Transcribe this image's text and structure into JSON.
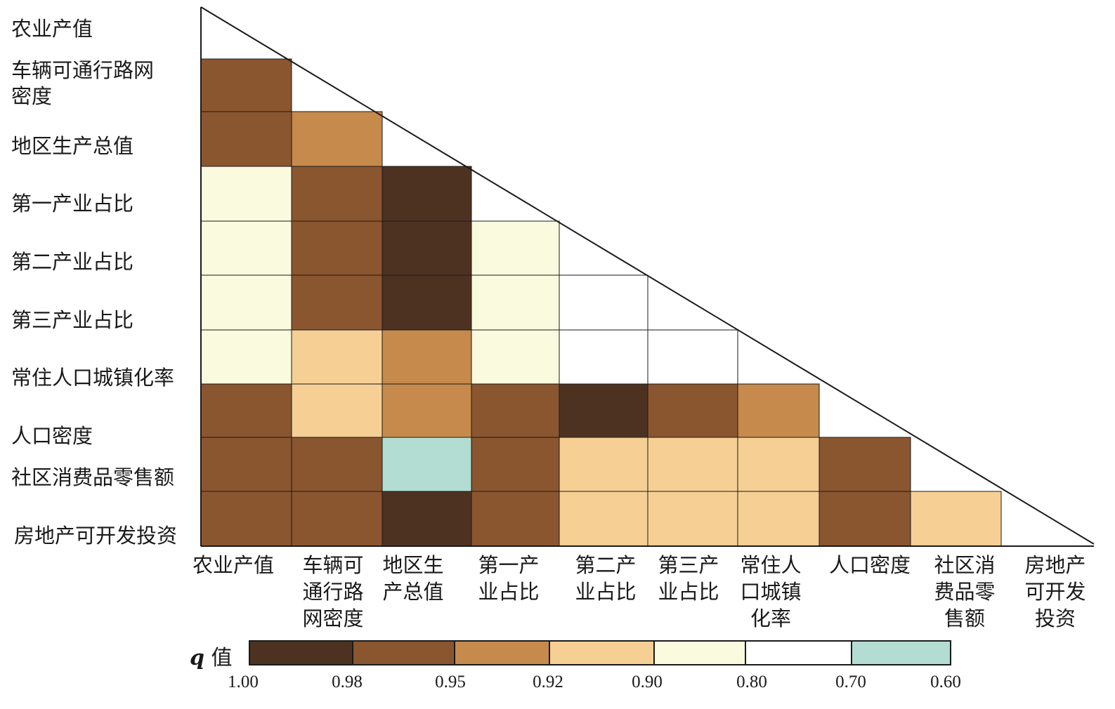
{
  "chart_data": {
    "type": "heatmap",
    "variables": [
      "农业产值",
      "车辆可通行路网密度",
      "地区生产总值",
      "第一产业占比",
      "第二产业占比",
      "第三产业占比",
      "常住人口城镇化率",
      "人口密度",
      "社区消费品零售额",
      "房地产可开发投资"
    ],
    "row_labels": [
      "农业产值",
      "车辆可通行路网\n密度",
      "地区生产总值",
      "第一产业占比",
      "第二产业占比",
      "第三产业占比",
      "常住人口城镇化率",
      "人口密度",
      "社区消费品零售额",
      "房地产可开发投资"
    ],
    "col_labels": [
      "农业产值",
      "车辆可\n通行路\n网密度",
      "地区生\n产总值",
      "第一产\n业占比",
      "第二产\n业占比",
      "第三产\n业占比",
      "常住人\n口城镇\n化率",
      "人口密度",
      "社区消\n费品零\n售额",
      "房地产\n可开发\n投资"
    ],
    "matrix_note": "cells[i][j] = legend class index (0 = 1.00–0.98 ... 6 = 0.70–0.60) for row i, col j (j < i)",
    "cells": [
      [],
      [
        1
      ],
      [
        1,
        2
      ],
      [
        4,
        1,
        0
      ],
      [
        4,
        1,
        0,
        4
      ],
      [
        4,
        1,
        0,
        4,
        5
      ],
      [
        4,
        3,
        2,
        4,
        5,
        5
      ],
      [
        1,
        3,
        2,
        1,
        0,
        1,
        2
      ],
      [
        1,
        1,
        6,
        1,
        3,
        3,
        3,
        1
      ],
      [
        1,
        1,
        0,
        1,
        3,
        3,
        3,
        1,
        3
      ]
    ],
    "legend": {
      "title_symbol": "q",
      "title_text": "值",
      "ticks": [
        "1.00",
        "0.98",
        "0.95",
        "0.92",
        "0.90",
        "0.80",
        "0.70",
        "0.60"
      ],
      "classes": [
        {
          "range": "1.00–0.98",
          "color": "#4e3221"
        },
        {
          "range": "0.98–0.95",
          "color": "#8a5630"
        },
        {
          "range": "0.95–0.92",
          "color": "#c68a4c"
        },
        {
          "range": "0.92–0.90",
          "color": "#f6cf95"
        },
        {
          "range": "0.90–0.80",
          "color": "#fafadf"
        },
        {
          "range": "0.80–0.70",
          "color": "#ffffff"
        },
        {
          "range": "0.70–0.60",
          "color": "#b3ddd2"
        }
      ]
    }
  }
}
